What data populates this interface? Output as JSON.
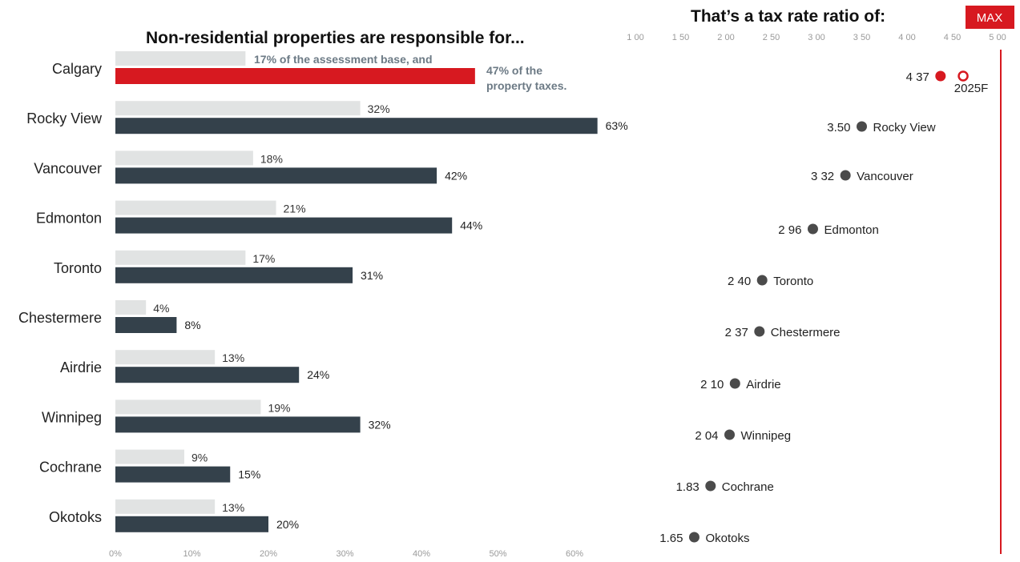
{
  "chart_data": [
    {
      "type": "bar",
      "title": "Non-residential properties are responsible for...",
      "categories": [
        "Calgary",
        "Rocky View",
        "Vancouver",
        "Edmonton",
        "Toronto",
        "Chestermere",
        "Airdrie",
        "Winnipeg",
        "Cochrane",
        "Okotoks"
      ],
      "series": [
        {
          "values": [
            17,
            32,
            18,
            21,
            17,
            4,
            13,
            19,
            9,
            13
          ]
        },
        {
          "values": [
            47,
            63,
            42,
            44,
            31,
            8,
            24,
            32,
            15,
            20
          ]
        }
      ],
      "value_labels": {
        "assessment": [
          "17% of the assessment base, and",
          "32%",
          "18%",
          "21%",
          "17%",
          "4%",
          "13%",
          "19%",
          "9%",
          "13%"
        ],
        "taxes": [
          "47% of the property taxes.",
          "63%",
          "42%",
          "44%",
          "31%",
          "8%",
          "24%",
          "32%",
          "15%",
          "20%"
        ]
      },
      "x_ticks": [
        "0%",
        "10%",
        "20%",
        "30%",
        "40%",
        "50%",
        "60%"
      ],
      "xlim": [
        0,
        65
      ],
      "highlight_category": "Calgary",
      "colors": {
        "assessment": "#e1e3e3",
        "taxes": "#34414b",
        "highlight": "#d71920",
        "annotation": "#6c7a85"
      }
    },
    {
      "type": "scatter",
      "title": "That’s a tax rate ratio of:",
      "x_ticks": [
        "1 00",
        "1 50",
        "2 00",
        "2 50",
        "3 00",
        "3 50",
        "4 00",
        "4 50",
        "5 00"
      ],
      "xlim": [
        1.0,
        5.0
      ],
      "points": [
        {
          "label": "",
          "value_label": "4 37",
          "x": 4.37,
          "highlight": true
        },
        {
          "label": "2025F",
          "value_label": "",
          "x": 4.62,
          "highlight": true,
          "hollow": true
        },
        {
          "label": "Rocky View",
          "value_label": "3.50",
          "x": 3.5
        },
        {
          "label": "Vancouver",
          "value_label": "3 32",
          "x": 3.32
        },
        {
          "label": "Edmonton",
          "value_label": "2 96",
          "x": 2.96
        },
        {
          "label": "Toronto",
          "value_label": "2 40",
          "x": 2.4
        },
        {
          "label": "Chestermere",
          "value_label": "2 37",
          "x": 2.37
        },
        {
          "label": "Airdrie",
          "value_label": "2 10",
          "x": 2.1
        },
        {
          "label": "Winnipeg",
          "value_label": "2 04",
          "x": 2.04
        },
        {
          "label": "Cochrane",
          "value_label": "1.83",
          "x": 1.83
        },
        {
          "label": "Okotoks",
          "value_label": "1.65",
          "x": 1.65
        }
      ],
      "max_label": "MAX",
      "max_value": 5.0,
      "colors": {
        "dot": "#4b4b4b",
        "highlight": "#d71920",
        "max_line": "#d71920"
      }
    }
  ]
}
